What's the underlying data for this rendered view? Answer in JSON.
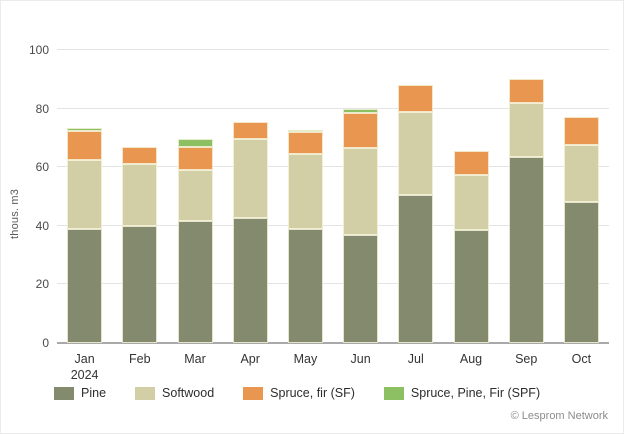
{
  "attribution": "© Lesprom Network",
  "chart_data": {
    "type": "bar",
    "subtype": "stacked-vertical",
    "title": "",
    "xlabel": "",
    "ylabel": "thous. m3",
    "ylim": [
      0,
      100
    ],
    "yticks": [
      0,
      20,
      40,
      60,
      80,
      100
    ],
    "grid": "horizontal",
    "legend_position": "bottom",
    "categories": [
      "Jan",
      "Feb",
      "Mar",
      "Apr",
      "May",
      "Jun",
      "Jul",
      "Aug",
      "Sep",
      "Oct"
    ],
    "first_category_sublabel": "2024",
    "series": [
      {
        "name": "Pine",
        "color": "#848a6e",
        "values": [
          39,
          40,
          41.5,
          42.5,
          39,
          37,
          50.5,
          38.5,
          63.5,
          48
        ]
      },
      {
        "name": "Softwood",
        "color": "#d2cfa6",
        "values": [
          23.5,
          21,
          17.5,
          27,
          25.5,
          29.5,
          28.5,
          19,
          18.5,
          19.5
        ]
      },
      {
        "name": "Spruce, fir (SF)",
        "color": "#e99650",
        "values": [
          10,
          6,
          8,
          6,
          7.5,
          12,
          9,
          8,
          8,
          9.5
        ]
      },
      {
        "name": "Spruce, Pine, Fir (SPF)",
        "color": "#8cc063",
        "values": [
          1,
          0,
          2.5,
          0,
          0.5,
          1.5,
          0,
          0,
          0,
          0
        ]
      }
    ],
    "totals": [
      73.5,
      67,
      69.5,
      75.5,
      72.5,
      80,
      88,
      65.5,
      90,
      77
    ]
  }
}
